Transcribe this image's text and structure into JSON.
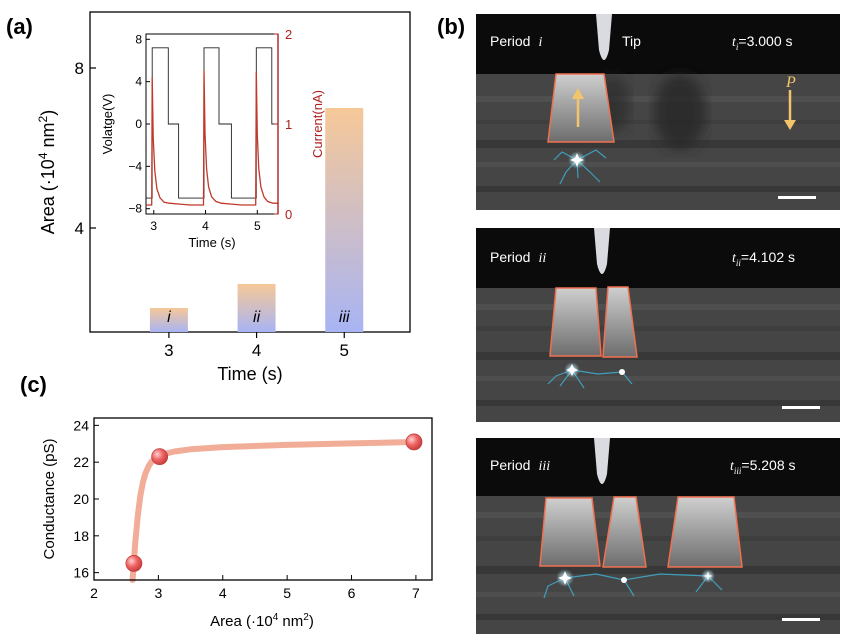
{
  "figure": {
    "panel_a_label": "(a)",
    "panel_b_label": "(b)",
    "panel_c_label": "(c)"
  },
  "chart_data": [
    {
      "id": "a-main",
      "type": "bar",
      "title": "",
      "xlabel": "Time (s)",
      "ylabel_prefix": "Area (·10",
      "ylabel_sup": "4",
      "ylabel_suffix": " nm",
      "ylabel_sup2": "2",
      "ylabel_close": ")",
      "categories": [
        "3",
        "4",
        "5"
      ],
      "x": [
        3,
        4,
        5
      ],
      "values": [
        2.0,
        2.6,
        7.0
      ],
      "bar_labels": [
        "i",
        "ii",
        "iii"
      ],
      "ylim": [
        1.4,
        9.4
      ],
      "xlim": [
        2.1,
        5.75
      ],
      "yticks": [
        4,
        8
      ],
      "ytick_labels": [
        "4",
        "8"
      ],
      "xticks": [
        3,
        4,
        5
      ],
      "xtick_labels": [
        "3",
        "4",
        "5"
      ],
      "bar_gradient_top": "#f6c898",
      "bar_gradient_bottom": "#a8b4f4"
    },
    {
      "id": "a-inset",
      "type": "line",
      "xlabel": "Time (s)",
      "ylabel": "Volatge(V)",
      "y2label": "Current(nA)",
      "xlim": [
        2.85,
        5.4
      ],
      "ylim": [
        -8.5,
        8.5
      ],
      "y2lim": [
        0,
        2
      ],
      "xticks": [
        3,
        4,
        5
      ],
      "xtick_labels": [
        "3",
        "4",
        "5"
      ],
      "yticks": [
        8,
        4,
        0,
        -4,
        -8
      ],
      "ytick_labels": [
        "8",
        "4",
        "0",
        "−4",
        "−8"
      ],
      "y2ticks": [
        2,
        1,
        0
      ],
      "y2tick_labels": [
        "2",
        "1",
        "0"
      ],
      "series": [
        {
          "name": "Voltage",
          "axis": "left",
          "color": "#222222",
          "x": [
            2.85,
            2.97,
            2.97,
            3.28,
            3.28,
            3.48,
            3.48,
            3.97,
            3.97,
            4.26,
            4.26,
            4.5,
            4.5,
            4.98,
            4.98,
            5.28,
            5.28,
            5.4
          ],
          "y": [
            -7,
            -7,
            7.2,
            7.2,
            0,
            0,
            -7,
            -7,
            7.2,
            7.2,
            0,
            0,
            -7,
            -7,
            7.2,
            7.2,
            0,
            0
          ]
        },
        {
          "name": "Current",
          "axis": "right",
          "color": "#c0392b",
          "x": [
            2.85,
            2.96,
            2.97,
            2.99,
            3.02,
            3.06,
            3.12,
            3.2,
            3.3,
            3.5,
            3.7,
            3.96,
            3.97,
            3.99,
            4.02,
            4.06,
            4.12,
            4.2,
            4.3,
            4.5,
            4.7,
            4.97,
            4.98,
            5.0,
            5.03,
            5.07,
            5.13,
            5.2,
            5.3,
            5.4
          ],
          "y": [
            0.1,
            0.1,
            1.52,
            0.85,
            0.48,
            0.28,
            0.18,
            0.13,
            0.12,
            0.11,
            0.1,
            0.1,
            1.6,
            0.9,
            0.5,
            0.3,
            0.19,
            0.14,
            0.12,
            0.11,
            0.1,
            0.1,
            1.58,
            0.88,
            0.5,
            0.3,
            0.19,
            0.14,
            0.12,
            0.12
          ]
        }
      ]
    },
    {
      "id": "c",
      "type": "scatter",
      "xlabel_prefix": "Area (·10",
      "xlabel_sup": "4",
      "xlabel_suffix": " nm",
      "xlabel_sup2": "2",
      "xlabel_close": ")",
      "ylabel": "Conductance (pS)",
      "xlim": [
        2.0,
        7.25
      ],
      "ylim": [
        15.6,
        24.4
      ],
      "xticks": [
        2,
        3,
        4,
        5,
        6,
        7
      ],
      "xtick_labels": [
        "2",
        "3",
        "4",
        "5",
        "6",
        "7"
      ],
      "yticks": [
        16,
        18,
        20,
        22,
        24
      ],
      "ytick_labels": [
        "16",
        "18",
        "20",
        "22",
        "24"
      ],
      "points_x": [
        2.62,
        3.02,
        6.97
      ],
      "points_y": [
        16.5,
        22.3,
        23.1
      ],
      "fit_x": [
        2.6,
        2.64,
        2.68,
        2.72,
        2.76,
        2.8,
        2.85,
        2.9,
        2.95,
        3.0,
        3.1,
        3.25,
        3.5,
        4.0,
        5.0,
        6.0,
        7.05
      ],
      "fit_y": [
        15.6,
        17.6,
        19.1,
        20.2,
        20.9,
        21.4,
        21.8,
        22.05,
        22.2,
        22.32,
        22.45,
        22.58,
        22.7,
        22.82,
        22.94,
        23.02,
        23.1
      ],
      "point_color": "#e55a5a",
      "fit_color": "#f0a48c"
    }
  ],
  "panel_b": {
    "frames": [
      {
        "period_word": "Period",
        "period_roman": "i",
        "tip_label": "Tip",
        "time_var": "t",
        "time_sub": "i",
        "time_value": "=3.000 s",
        "arrow_label": "P"
      },
      {
        "period_word": "Period",
        "period_roman": "ii",
        "time_var": "t",
        "time_sub": "ii",
        "time_value": "=4.102 s"
      },
      {
        "period_word": "Period",
        "period_roman": "iii",
        "time_var": "t",
        "time_sub": "iii",
        "time_value": "=5.208 s"
      }
    ]
  }
}
